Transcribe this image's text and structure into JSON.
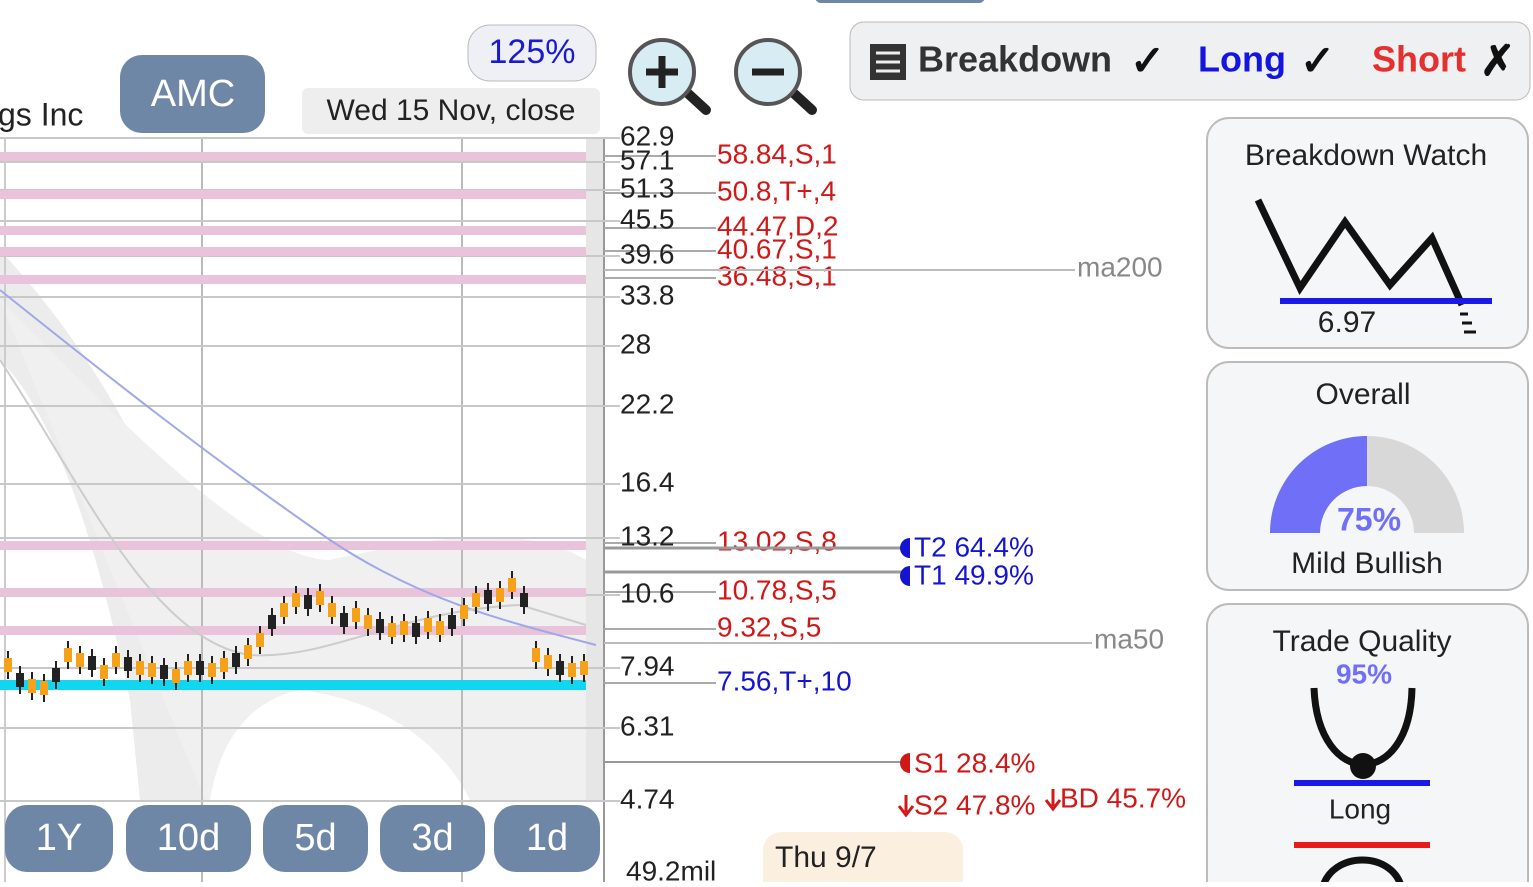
{
  "header": {
    "company": "gs Inc",
    "ticker": "AMC",
    "zoom": "125%",
    "date": "Wed 15 Nov, close"
  },
  "toolbar": {
    "breakdown": "Breakdown",
    "breakdown_mark": "✓",
    "long": "Long",
    "long_mark": "✓",
    "short": "Short",
    "short_mark": "✗"
  },
  "axis": {
    "ticks": [
      "62.9",
      "57.1",
      "51.3",
      "45.5",
      "39.6",
      "33.8",
      "28",
      "22.2",
      "16.4",
      "13.2",
      "10.6",
      "7.94",
      "6.31",
      "4.74"
    ],
    "volume": "49.2mil"
  },
  "levels": [
    {
      "label": "58.84,S,1",
      "color": "#d01818"
    },
    {
      "label": "50.8,T+,4",
      "color": "#d01818"
    },
    {
      "label": "44.47,D,2",
      "color": "#d01818"
    },
    {
      "label": "40.67,S,1",
      "color": "#d01818"
    },
    {
      "label": "36.48,S,1",
      "color": "#d01818"
    },
    {
      "label": "13.02,S,8",
      "color": "#d01818"
    },
    {
      "label": "10.78,S,5",
      "color": "#d01818"
    },
    {
      "label": "9.32,S,5",
      "color": "#d01818"
    },
    {
      "label": "7.56,T+,10",
      "color": "#1515d0"
    }
  ],
  "moving_averages": [
    "ma200",
    "ma50"
  ],
  "targets": [
    "T2 64.4%",
    "T1 49.9%",
    "S1 28.4%",
    "S2 47.8%",
    "BD 45.7%"
  ],
  "periods": [
    "1Y",
    "10d",
    "5d",
    "3d",
    "1d"
  ],
  "tooltip": "Thu 9/7",
  "panels": {
    "breakdown_watch": {
      "title": "Breakdown Watch",
      "value": "6.97"
    },
    "overall": {
      "title": "Overall",
      "value": "75%",
      "label": "Mild Bullish"
    },
    "trade_quality": {
      "title": "Trade Quality",
      "value": "95%",
      "label": "Long"
    }
  }
}
